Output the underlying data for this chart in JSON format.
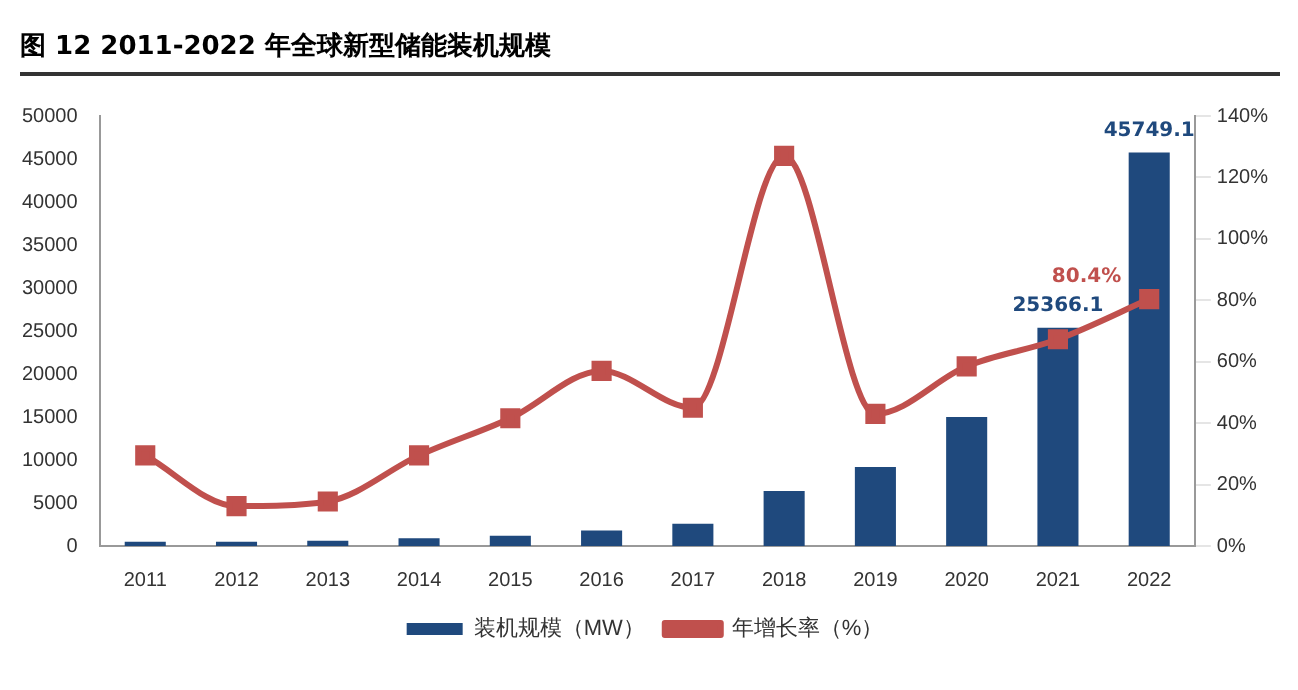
{
  "chart_data": {
    "type": "bar",
    "title": "图 12 2011-2022 年全球新型储能装机规模",
    "categories": [
      "2011",
      "2012",
      "2013",
      "2014",
      "2015",
      "2016",
      "2017",
      "2018",
      "2019",
      "2020",
      "2021",
      "2022"
    ],
    "series": [
      {
        "name": "装机规模（MW）",
        "color": "#1f497d",
        "values": [
          500,
          500,
          600,
          900,
          1200,
          1800,
          2600,
          6400,
          9200,
          15000,
          25366.1,
          45749.1
        ],
        "value_labels": [
          null,
          null,
          null,
          null,
          null,
          null,
          null,
          null,
          null,
          null,
          "25366.1",
          "45749.1"
        ]
      },
      {
        "name": "年增长率（%）",
        "type": "line",
        "axis": "y2",
        "color": "#c0504d",
        "values": [
          29.5,
          13,
          14.5,
          29.5,
          41.6,
          57,
          45,
          127,
          43,
          58.5,
          67.3,
          80.4
        ],
        "value_labels": [
          null,
          null,
          null,
          null,
          null,
          null,
          null,
          null,
          null,
          null,
          null,
          "80.4%"
        ]
      }
    ],
    "ylim": [
      0,
      50000
    ],
    "yticks": [
      0,
      5000,
      10000,
      15000,
      20000,
      25000,
      30000,
      35000,
      40000,
      45000,
      50000
    ],
    "y2lim": [
      0,
      140
    ],
    "y2ticks": [
      {
        "value": 0,
        "label": "0%"
      },
      {
        "value": 20,
        "label": "20%"
      },
      {
        "value": 40,
        "label": "40%"
      },
      {
        "value": 60,
        "label": "60%"
      },
      {
        "value": 80,
        "label": "80%"
      },
      {
        "value": 100,
        "label": "100%"
      },
      {
        "value": 120,
        "label": "120%"
      },
      {
        "value": 140,
        "label": "140%"
      }
    ],
    "grid": false,
    "legend": "bottom",
    "marker": "square"
  }
}
